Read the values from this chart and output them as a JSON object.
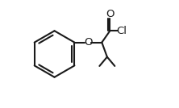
{
  "background": "#ffffff",
  "line_color": "#1a1a1a",
  "line_width": 1.5,
  "font_size": 8.5,
  "figsize": [
    2.22,
    1.34
  ],
  "dpi": 100,
  "xlim": [
    0.0,
    1.0
  ],
  "ylim": [
    0.05,
    0.95
  ]
}
